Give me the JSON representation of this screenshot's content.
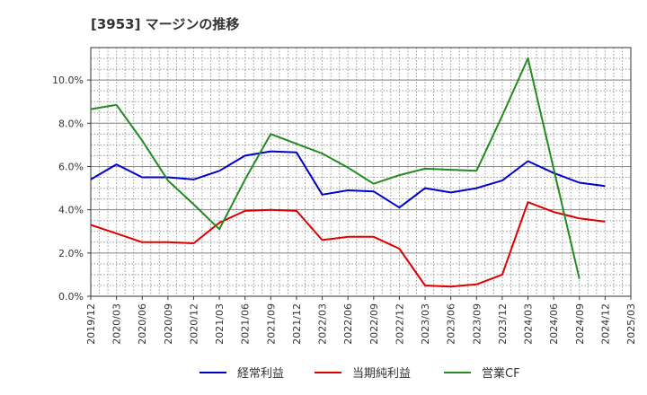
{
  "chart_data": {
    "type": "line",
    "title": "[3953]  マージンの推移",
    "xlabel": "",
    "ylabel": "",
    "x": [
      "2019/12",
      "2020/03",
      "2020/06",
      "2020/09",
      "2020/12",
      "2021/03",
      "2021/06",
      "2021/09",
      "2021/12",
      "2022/03",
      "2022/06",
      "2022/09",
      "2022/12",
      "2023/03",
      "2023/06",
      "2023/09",
      "2023/12",
      "2024/03",
      "2024/06",
      "2024/09",
      "2024/12",
      "2025/03"
    ],
    "ylim": [
      0,
      11.5
    ],
    "yticks": [
      0,
      2,
      4,
      6,
      8,
      10
    ],
    "ytick_labels": [
      "0.0%",
      "2.0%",
      "4.0%",
      "6.0%",
      "8.0%",
      "10.0%"
    ],
    "grid": true,
    "legend_position": "bottom",
    "series": [
      {
        "name": "経常利益",
        "color": "#0000cc",
        "values": [
          5.4,
          6.1,
          5.5,
          5.5,
          5.4,
          5.8,
          6.5,
          6.7,
          6.65,
          4.7,
          4.9,
          4.85,
          4.1,
          5.0,
          4.8,
          5.0,
          5.35,
          6.25,
          5.7,
          5.25,
          5.1,
          null
        ]
      },
      {
        "name": "当期純利益",
        "color": "#dd0000",
        "values": [
          3.3,
          2.9,
          2.5,
          2.5,
          2.45,
          3.4,
          3.95,
          4.0,
          3.95,
          2.6,
          2.75,
          2.75,
          2.2,
          0.5,
          0.45,
          0.55,
          1.0,
          4.35,
          3.9,
          3.6,
          3.45,
          null
        ]
      },
      {
        "name": "営業CF",
        "color": "#228b22",
        "values": [
          8.65,
          8.85,
          7.2,
          5.35,
          4.25,
          3.1,
          5.4,
          7.5,
          7.05,
          6.6,
          5.95,
          5.2,
          5.6,
          5.9,
          5.85,
          5.8,
          8.35,
          11.0,
          5.9,
          0.8,
          null,
          null
        ]
      }
    ]
  }
}
